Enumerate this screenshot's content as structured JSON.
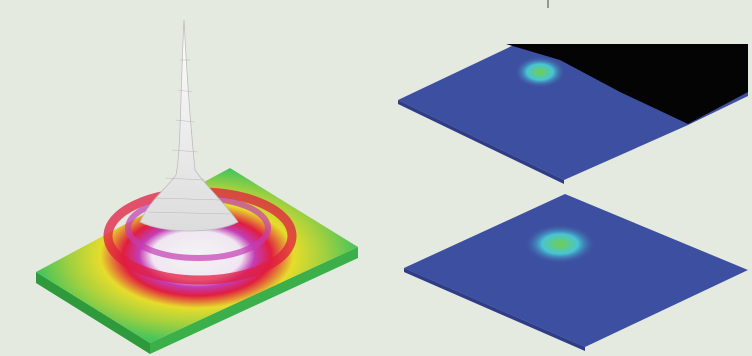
{
  "colors": {
    "background": "#e5eae1",
    "blue_surface": "#3d4fa0",
    "blue_surface_dark": "#2e3d86",
    "cyan": "#48c4d6",
    "green": "#46c45c",
    "yellow": "#e6dc2c",
    "red": "#e01e40",
    "magenta": "#c43cb4",
    "white_peak": "#f4f4f4",
    "black_region": "#040404"
  },
  "scene": {
    "left_plot": {
      "content": "surface-3d-peak"
    },
    "right_top_plot": {
      "content": "surface-3d-flat-with-black-region"
    },
    "right_bottom_plot": {
      "content": "surface-3d-flat"
    }
  }
}
